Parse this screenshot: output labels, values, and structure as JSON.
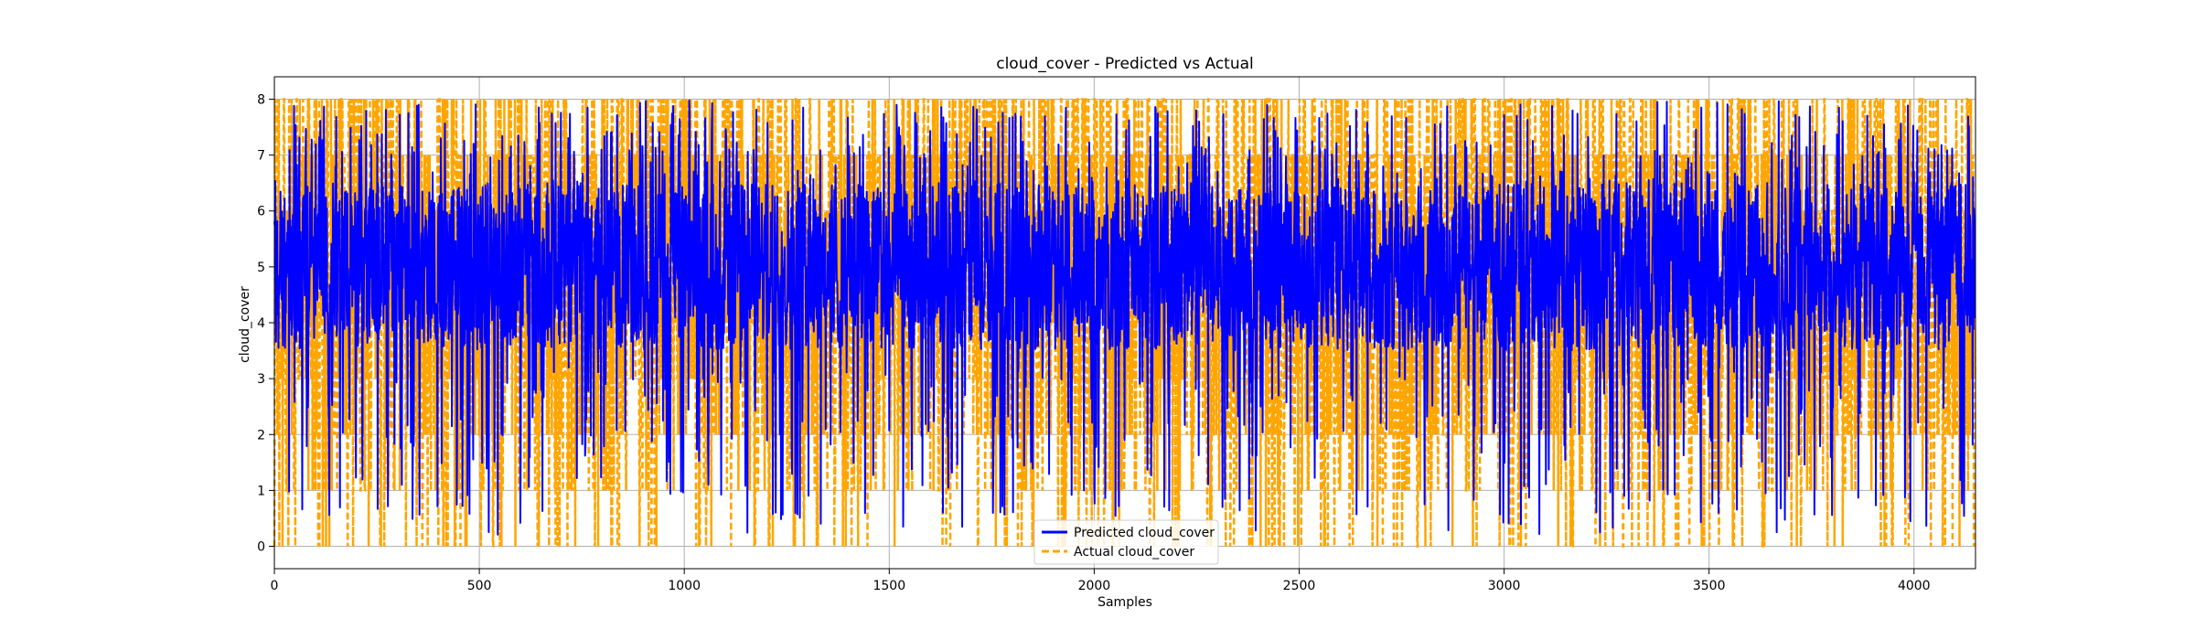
{
  "chart_data": {
    "type": "line",
    "title": "cloud_cover - Predicted vs Actual",
    "xlabel": "Samples",
    "ylabel": "cloud_cover",
    "xlim": [
      0,
      4150
    ],
    "ylim": [
      -0.4,
      8.4
    ],
    "x_ticks": [
      0,
      500,
      1000,
      1500,
      2000,
      2500,
      3000,
      3500,
      4000
    ],
    "y_ticks": [
      0,
      1,
      2,
      3,
      4,
      5,
      6,
      7,
      8
    ],
    "grid": true,
    "legend_position": "lower-center",
    "sample_count": 4150,
    "series": [
      {
        "name": "Predicted cloud_cover",
        "color": "#0000ff",
        "style": "solid",
        "range": [
          0,
          8
        ],
        "typical_range": [
          3.5,
          6.5
        ]
      },
      {
        "name": "Actual cloud_cover",
        "color": "#ffa500",
        "style": "dashed",
        "levels": [
          0,
          1,
          2,
          3,
          4,
          5,
          6,
          7,
          8
        ]
      }
    ]
  }
}
